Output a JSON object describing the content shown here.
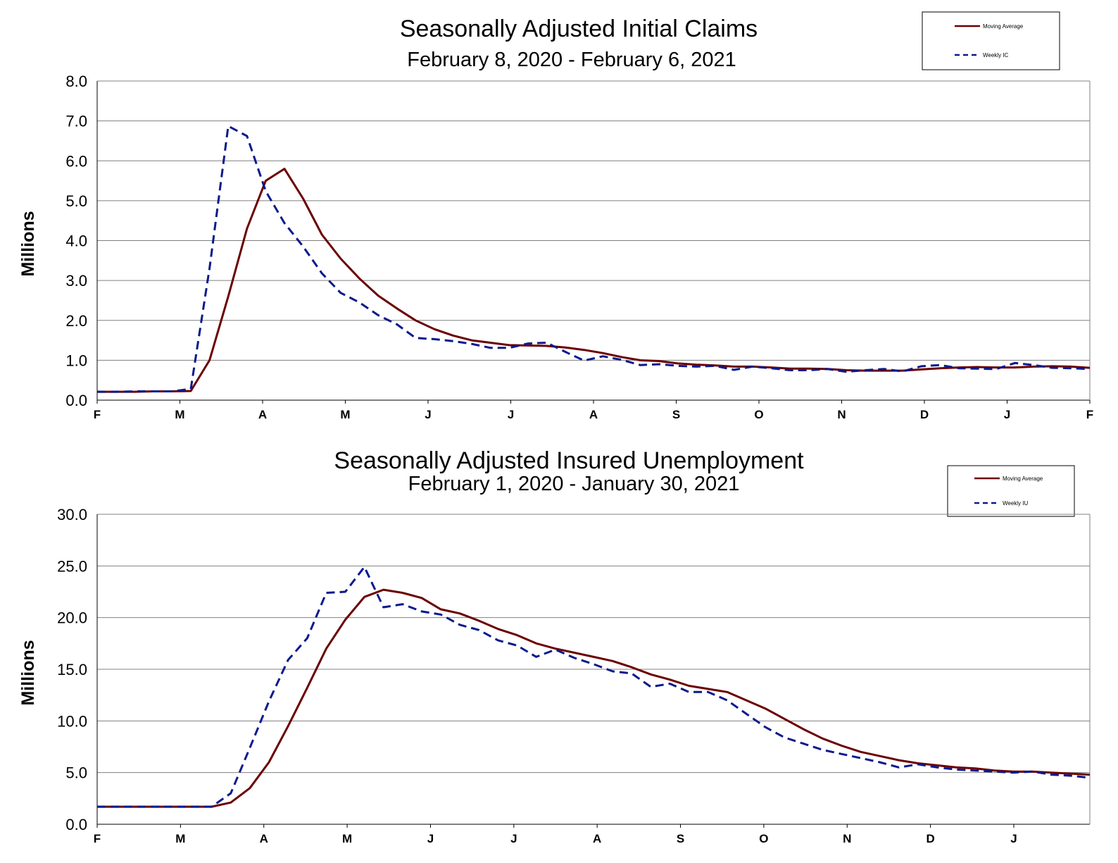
{
  "colors": {
    "moving_average": "#6B0000",
    "weekly": "#0A1A8C",
    "grid": "#808080"
  },
  "chart_data": [
    {
      "type": "line",
      "title": "Seasonally Adjusted Initial Claims",
      "subtitle": "February 8, 2020 - February 6, 2021",
      "ylabel": "Millions",
      "ylim": [
        0,
        8
      ],
      "yticks": [
        "0.0",
        "1.0",
        "2.0",
        "3.0",
        "4.0",
        "5.0",
        "6.0",
        "7.0",
        "8.0"
      ],
      "xticks": [
        "F",
        "M",
        "A",
        "M",
        "J",
        "J",
        "A",
        "S",
        "O",
        "N",
        "D",
        "J",
        "F"
      ],
      "grid": true,
      "legend_position": "top-right",
      "legend": [
        "Moving Average",
        "Weekly IC"
      ],
      "series": [
        {
          "name": "Moving Average",
          "style": "solid",
          "values": [
            0.21,
            0.21,
            0.21,
            0.22,
            0.22,
            0.23,
            1.0,
            2.6,
            4.3,
            5.5,
            5.8,
            5.05,
            4.15,
            3.55,
            3.05,
            2.62,
            2.3,
            2.0,
            1.78,
            1.62,
            1.5,
            1.44,
            1.38,
            1.37,
            1.36,
            1.32,
            1.26,
            1.18,
            1.08,
            1.0,
            0.98,
            0.92,
            0.89,
            0.87,
            0.84,
            0.84,
            0.82,
            0.79,
            0.79,
            0.78,
            0.75,
            0.74,
            0.74,
            0.74,
            0.77,
            0.8,
            0.82,
            0.83,
            0.82,
            0.82,
            0.84,
            0.85,
            0.84,
            0.81
          ]
        },
        {
          "name": "Weekly IC",
          "style": "dashed",
          "values": [
            0.21,
            0.21,
            0.22,
            0.22,
            0.22,
            0.28,
            3.3,
            6.87,
            6.62,
            5.24,
            4.44,
            3.85,
            3.18,
            2.69,
            2.45,
            2.13,
            1.9,
            1.56,
            1.53,
            1.48,
            1.41,
            1.31,
            1.31,
            1.42,
            1.44,
            1.21,
            0.99,
            1.1,
            1.01,
            0.88,
            0.9,
            0.86,
            0.84,
            0.86,
            0.76,
            0.84,
            0.8,
            0.75,
            0.75,
            0.78,
            0.71,
            0.75,
            0.78,
            0.72,
            0.85,
            0.88,
            0.8,
            0.79,
            0.78,
            0.93,
            0.88,
            0.81,
            0.8,
            0.78
          ]
        }
      ]
    },
    {
      "type": "line",
      "title": "Seasonally Adjusted Insured Unemployment",
      "subtitle": "February 1, 2020 - January 30, 2021",
      "ylabel": "Millions",
      "ylim": [
        0,
        30
      ],
      "yticks": [
        "0.0",
        "5.0",
        "10.0",
        "15.0",
        "20.0",
        "25.0",
        "30.0"
      ],
      "xticks": [
        "F",
        "M",
        "A",
        "M",
        "J",
        "J",
        "A",
        "S",
        "O",
        "N",
        "D",
        "J"
      ],
      "grid": true,
      "legend_position": "top-right",
      "legend": [
        "Moving Average",
        "Weekly IU"
      ],
      "series": [
        {
          "name": "Moving Average",
          "style": "solid",
          "values": [
            1.7,
            1.7,
            1.7,
            1.7,
            1.7,
            1.7,
            1.7,
            2.1,
            3.5,
            6.0,
            9.5,
            13.2,
            17.0,
            19.8,
            22.0,
            22.7,
            22.4,
            21.9,
            20.8,
            20.4,
            19.7,
            18.9,
            18.3,
            17.5,
            17.0,
            16.6,
            16.2,
            15.8,
            15.2,
            14.5,
            14.0,
            13.4,
            13.1,
            12.8,
            12.0,
            11.2,
            10.2,
            9.2,
            8.3,
            7.6,
            7.0,
            6.6,
            6.2,
            5.9,
            5.7,
            5.5,
            5.4,
            5.2,
            5.1,
            5.1,
            5.0,
            4.9,
            4.8
          ]
        },
        {
          "name": "Weekly IU",
          "style": "dashed",
          "values": [
            1.7,
            1.7,
            1.7,
            1.7,
            1.7,
            1.7,
            1.7,
            3.0,
            7.4,
            11.9,
            15.9,
            18.0,
            22.4,
            22.5,
            24.9,
            21.0,
            21.3,
            20.6,
            20.3,
            19.3,
            18.8,
            17.8,
            17.3,
            16.2,
            16.9,
            16.1,
            15.5,
            14.8,
            14.6,
            13.3,
            13.6,
            12.8,
            12.8,
            12.0,
            10.7,
            9.4,
            8.4,
            7.8,
            7.2,
            6.8,
            6.4,
            6.0,
            5.5,
            5.8,
            5.5,
            5.3,
            5.2,
            5.1,
            5.0,
            5.1,
            4.8,
            4.7,
            4.5
          ]
        }
      ]
    }
  ]
}
